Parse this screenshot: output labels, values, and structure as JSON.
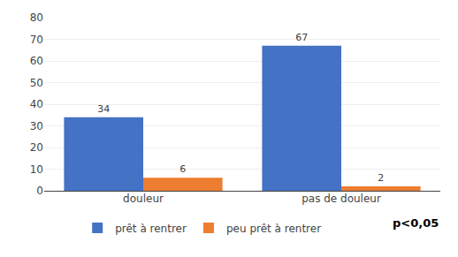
{
  "chart_data": {
    "type": "bar",
    "categories": [
      "douleur",
      "pas de douleur"
    ],
    "series": [
      {
        "name": "prêt à rentrer",
        "color": "#4472C4",
        "values": [
          34,
          67
        ]
      },
      {
        "name": "peu prêt à rentrer",
        "color": "#ED7D31",
        "values": [
          6,
          2
        ]
      }
    ],
    "ylim": [
      0,
      80
    ],
    "yticks": [
      0,
      10,
      20,
      30,
      40,
      50,
      60,
      70,
      80
    ],
    "grid": true,
    "data_labels": true,
    "legend": "bottom",
    "annotation": "p<0,05"
  }
}
